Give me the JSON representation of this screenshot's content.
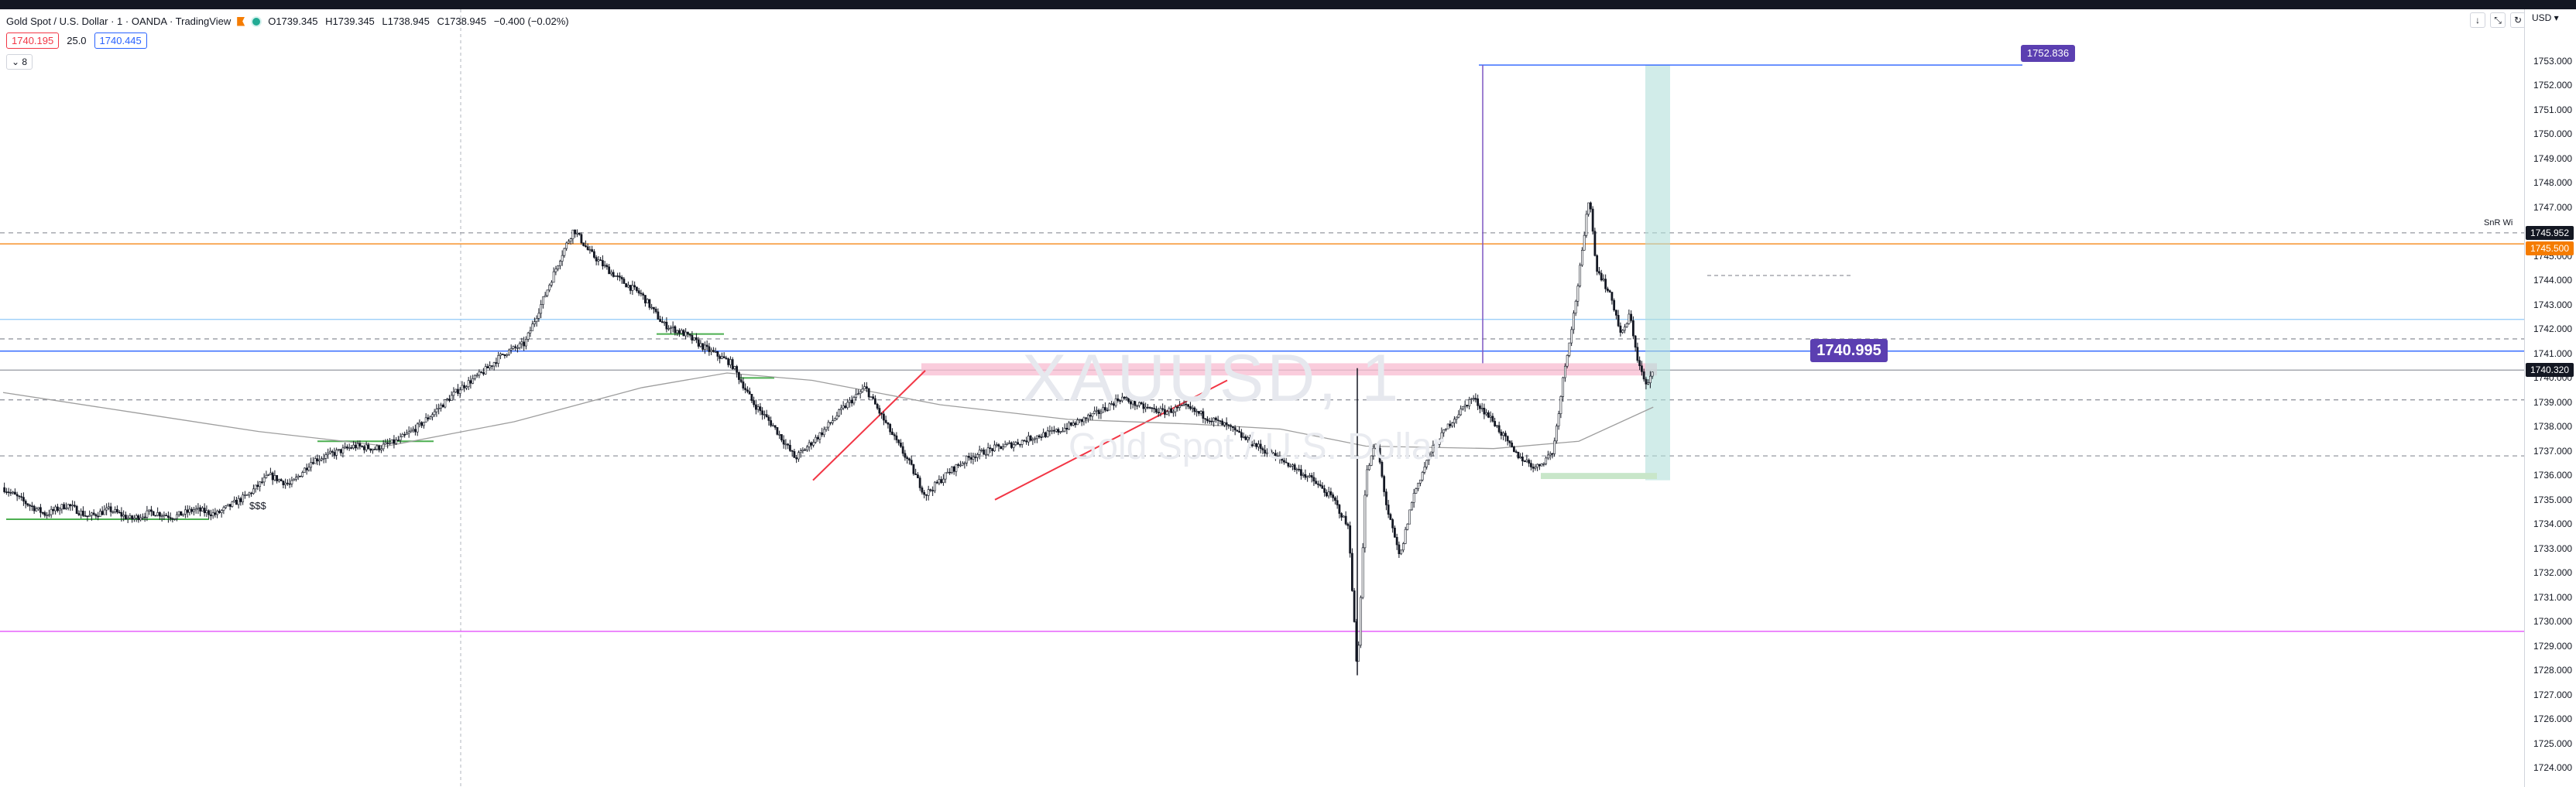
{
  "header": {
    "symbol_line": "Gold Spot / U.S. Dollar · 1 · OANDA · TradingView",
    "open": "O1739.345",
    "high": "H1739.345",
    "low": "L1738.945",
    "close": "C1738.945",
    "change": "−0.400 (−0.02%)",
    "sell_price": "1740.195",
    "spread": "25.0",
    "buy_price": "1740.445",
    "indicator_toggle": "8",
    "currency": "USD"
  },
  "watermark": {
    "ticker": "XAUUSD, 1",
    "name": "Gold Spot / U.S. Dollar"
  },
  "annotations": {
    "sss": "$$$",
    "sr_label": "SnR Wi",
    "target_callout": "1752.836",
    "entry_callout": "1740.995"
  },
  "price_scale": {
    "ticks": [
      "1753.000",
      "1752.000",
      "1751.000",
      "1750.000",
      "1749.000",
      "1748.000",
      "1747.000",
      "1746.000",
      "1745.000",
      "1744.000",
      "1743.000",
      "1742.000",
      "1741.000",
      "1740.000",
      "1739.000",
      "1738.000",
      "1737.000",
      "1736.000",
      "1735.000",
      "1734.000",
      "1733.000",
      "1732.000",
      "1731.000",
      "1730.000",
      "1729.000",
      "1728.000",
      "1727.000",
      "1726.000",
      "1725.000",
      "1724.000"
    ],
    "tags": {
      "snr": "1745.952",
      "orange": "1745.500",
      "last": "1740.320"
    }
  },
  "colors": {
    "candle": "#131722",
    "orange_line": "#f57c00",
    "blue_line": "#2962ff",
    "magenta_line": "#e040fb",
    "red_trend": "#f23645",
    "green_zone": "#4caf50",
    "pink_zone": "#f8bbd0",
    "teal_zone": "#b2dfdb",
    "purple_callout": "#5b3fb1",
    "ma_line": "#9e9e9e"
  },
  "chart_data": {
    "type": "candlestick",
    "ylim": [
      1723.5,
      1753.6
    ],
    "x_range": [
      0,
      1060
    ],
    "close_path": [
      [
        0,
        1735.5
      ],
      [
        10,
        1734.9
      ],
      [
        20,
        1734.4
      ],
      [
        30,
        1734.8
      ],
      [
        40,
        1734.3
      ],
      [
        50,
        1734.6
      ],
      [
        60,
        1734.2
      ],
      [
        70,
        1734.5
      ],
      [
        80,
        1734.3
      ],
      [
        90,
        1734.6
      ],
      [
        100,
        1734.4
      ],
      [
        115,
        1735.2
      ],
      [
        125,
        1736.0
      ],
      [
        135,
        1735.6
      ],
      [
        145,
        1736.6
      ],
      [
        155,
        1736.9
      ],
      [
        165,
        1737.2
      ],
      [
        175,
        1737.1
      ],
      [
        185,
        1737.4
      ],
      [
        195,
        1738.0
      ],
      [
        205,
        1738.8
      ],
      [
        215,
        1739.6
      ],
      [
        225,
        1740.2
      ],
      [
        235,
        1741.0
      ],
      [
        245,
        1741.4
      ],
      [
        255,
        1743.5
      ],
      [
        262,
        1745.0
      ],
      [
        268,
        1746.1
      ],
      [
        275,
        1745.2
      ],
      [
        282,
        1744.6
      ],
      [
        290,
        1744.0
      ],
      [
        300,
        1743.4
      ],
      [
        310,
        1742.2
      ],
      [
        320,
        1741.8
      ],
      [
        330,
        1741.2
      ],
      [
        342,
        1740.6
      ],
      [
        352,
        1739.0
      ],
      [
        362,
        1738.0
      ],
      [
        372,
        1736.7
      ],
      [
        385,
        1737.8
      ],
      [
        395,
        1738.8
      ],
      [
        405,
        1739.6
      ],
      [
        418,
        1737.6
      ],
      [
        425,
        1736.6
      ],
      [
        433,
        1735.2
      ],
      [
        445,
        1736.2
      ],
      [
        455,
        1736.8
      ],
      [
        465,
        1737.1
      ],
      [
        475,
        1737.3
      ],
      [
        485,
        1737.6
      ],
      [
        495,
        1737.8
      ],
      [
        505,
        1738.2
      ],
      [
        515,
        1738.6
      ],
      [
        525,
        1739.2
      ],
      [
        535,
        1738.8
      ],
      [
        545,
        1738.6
      ],
      [
        555,
        1738.8
      ],
      [
        565,
        1738.4
      ],
      [
        575,
        1738.0
      ],
      [
        585,
        1737.4
      ],
      [
        595,
        1736.9
      ],
      [
        605,
        1736.4
      ],
      [
        615,
        1735.8
      ],
      [
        625,
        1735.0
      ],
      [
        632,
        1733.8
      ],
      [
        636,
        1727.8
      ],
      [
        640,
        1736.0
      ],
      [
        645,
        1737.4
      ],
      [
        650,
        1734.6
      ],
      [
        656,
        1732.6
      ],
      [
        662,
        1735.1
      ],
      [
        670,
        1736.9
      ],
      [
        680,
        1738.2
      ],
      [
        690,
        1739.2
      ],
      [
        700,
        1738.2
      ],
      [
        710,
        1736.9
      ],
      [
        720,
        1736.3
      ],
      [
        728,
        1737.0
      ],
      [
        733,
        1740.2
      ],
      [
        738,
        1742.8
      ],
      [
        742,
        1745.4
      ],
      [
        745,
        1747.6
      ],
      [
        748,
        1744.6
      ],
      [
        752,
        1743.9
      ],
      [
        756,
        1743.1
      ],
      [
        760,
        1741.7
      ],
      [
        764,
        1742.6
      ],
      [
        768,
        1740.6
      ],
      [
        772,
        1739.6
      ],
      [
        775,
        1740.3
      ]
    ],
    "moving_average": [
      [
        0,
        1739.4
      ],
      [
        60,
        1738.6
      ],
      [
        120,
        1737.8
      ],
      [
        180,
        1737.2
      ],
      [
        240,
        1738.2
      ],
      [
        300,
        1739.6
      ],
      [
        340,
        1740.2
      ],
      [
        380,
        1739.9
      ],
      [
        440,
        1738.9
      ],
      [
        500,
        1738.3
      ],
      [
        560,
        1738.1
      ],
      [
        600,
        1737.9
      ],
      [
        640,
        1737.2
      ],
      [
        700,
        1737.1
      ],
      [
        740,
        1737.4
      ],
      [
        775,
        1738.8
      ]
    ],
    "levels": [
      {
        "price": 1745.952,
        "style": "dashed",
        "color": "#9598a1"
      },
      {
        "price": 1745.5,
        "style": "solid",
        "color": "#f57c00"
      },
      {
        "price": 1742.4,
        "style": "solid",
        "color": "#90caf9"
      },
      {
        "price": 1741.6,
        "style": "dashed",
        "color": "#9598a1"
      },
      {
        "price": 1741.1,
        "style": "solid",
        "color": "#2962ff"
      },
      {
        "price": 1740.32,
        "style": "solid",
        "color": "#9598a1"
      },
      {
        "price": 1739.1,
        "style": "dashed",
        "color": "#9598a1"
      },
      {
        "price": 1736.8,
        "style": "dashed",
        "color": "#9598a1"
      },
      {
        "price": 1729.6,
        "style": "solid",
        "color": "#e040fb"
      }
    ],
    "target_price": 1752.836,
    "entry_price": 1740.995
  }
}
